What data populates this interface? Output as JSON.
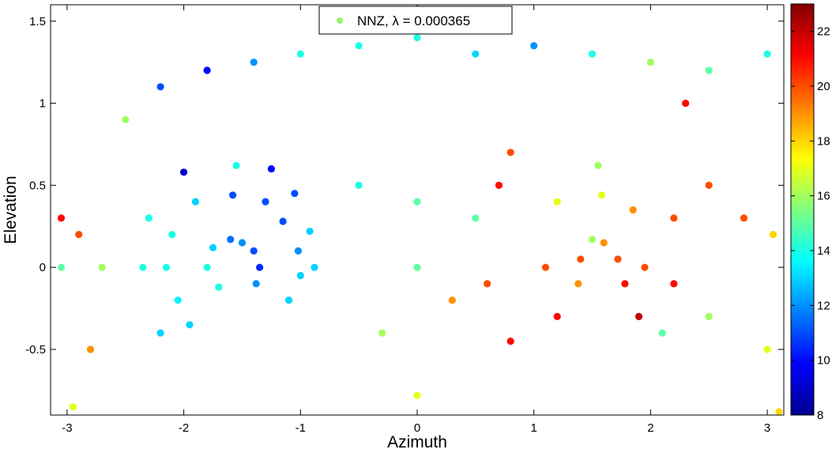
{
  "chart_data": {
    "type": "scatter",
    "title": "",
    "xlabel": "Azimuth",
    "ylabel": "Elevation",
    "xlim": [
      -3.14159,
      3.14159
    ],
    "ylim": [
      -0.9,
      1.6
    ],
    "xticks": [
      -3,
      -2,
      -1,
      0,
      1,
      2,
      3
    ],
    "xtick_labels": [
      "-3",
      "-2",
      "-1",
      "0",
      "1",
      "2",
      "3"
    ],
    "yticks": [
      -0.5,
      0,
      0.5,
      1,
      1.5
    ],
    "ytick_labels": [
      "-0.5",
      "0",
      "0.5",
      "1",
      "1.5"
    ],
    "grid": false,
    "legend": {
      "entries": [
        "NNZ, λ = 0.000365"
      ],
      "placement": "top-center",
      "marker_color": "#9AF06B"
    },
    "colorbar": {
      "colormap": "jet",
      "range": [
        8,
        23
      ],
      "ticks": [
        8,
        10,
        12,
        14,
        16,
        18,
        20,
        22
      ],
      "tick_labels": [
        "8",
        "10",
        "12",
        "14",
        "16",
        "18",
        "20",
        "22"
      ]
    },
    "series": [
      {
        "description_of_values": "approximate reading of NNZ per point",
        "points": [
          [
            -1.6,
            0.17,
            11.5
          ],
          [
            -1.5,
            0.15,
            12
          ],
          [
            -1.4,
            0.1,
            11
          ],
          [
            -1.35,
            0.0,
            10.5
          ],
          [
            -1.38,
            -0.1,
            12
          ],
          [
            -1.75,
            0.12,
            13
          ],
          [
            -1.8,
            0.0,
            14
          ],
          [
            -1.7,
            -0.12,
            14
          ],
          [
            -1.58,
            0.44,
            11
          ],
          [
            -1.3,
            0.4,
            11
          ],
          [
            -1.15,
            0.28,
            11
          ],
          [
            -1.02,
            0.1,
            12
          ],
          [
            -1.0,
            -0.05,
            13
          ],
          [
            -1.1,
            -0.2,
            13
          ],
          [
            -1.9,
            0.4,
            13
          ],
          [
            -2.1,
            0.2,
            14
          ],
          [
            -2.15,
            0.0,
            14
          ],
          [
            -2.05,
            -0.2,
            13.5
          ],
          [
            -1.95,
            -0.35,
            13
          ],
          [
            -1.55,
            0.62,
            14
          ],
          [
            -1.25,
            0.6,
            10
          ],
          [
            -1.05,
            0.45,
            11
          ],
          [
            -0.92,
            0.22,
            13
          ],
          [
            -0.88,
            0.0,
            13
          ],
          [
            -2.0,
            0.58,
            9
          ],
          [
            -2.3,
            0.3,
            14
          ],
          [
            -2.35,
            0.0,
            14
          ],
          [
            -2.2,
            -0.4,
            13
          ],
          [
            -2.7,
            0.0,
            16
          ],
          [
            -2.9,
            0.2,
            20
          ],
          [
            -3.05,
            0.3,
            21
          ],
          [
            -3.05,
            0.0,
            15
          ],
          [
            -2.8,
            -0.5,
            19
          ],
          [
            -2.5,
            0.9,
            16
          ],
          [
            -2.2,
            1.1,
            11
          ],
          [
            -1.8,
            1.2,
            10
          ],
          [
            -1.4,
            1.25,
            12
          ],
          [
            -1.0,
            1.3,
            14
          ],
          [
            -0.5,
            1.35,
            14
          ],
          [
            0.0,
            1.4,
            14
          ],
          [
            0.5,
            1.3,
            13
          ],
          [
            1.0,
            1.35,
            12
          ],
          [
            1.5,
            1.3,
            14
          ],
          [
            2.0,
            1.25,
            16
          ],
          [
            2.5,
            1.2,
            15
          ],
          [
            3.0,
            1.3,
            14
          ],
          [
            -0.5,
            0.5,
            14
          ],
          [
            0.0,
            0.4,
            15
          ],
          [
            0.5,
            0.3,
            15
          ],
          [
            0.0,
            0.0,
            15
          ],
          [
            0.3,
            -0.2,
            19
          ],
          [
            0.6,
            -0.1,
            20
          ],
          [
            -0.3,
            -0.4,
            16
          ],
          [
            0.0,
            -0.78,
            17
          ],
          [
            0.8,
            -0.45,
            21
          ],
          [
            1.5,
            0.17,
            16
          ],
          [
            1.6,
            0.15,
            19
          ],
          [
            1.72,
            0.05,
            20
          ],
          [
            1.78,
            -0.1,
            21
          ],
          [
            1.4,
            0.05,
            20
          ],
          [
            1.38,
            -0.1,
            19
          ],
          [
            1.58,
            0.44,
            17
          ],
          [
            1.85,
            0.35,
            19
          ],
          [
            1.95,
            0.0,
            20
          ],
          [
            1.9,
            -0.3,
            22
          ],
          [
            1.2,
            0.4,
            17
          ],
          [
            1.1,
            0.0,
            20
          ],
          [
            1.2,
            -0.3,
            21
          ],
          [
            1.55,
            0.62,
            16
          ],
          [
            2.2,
            0.3,
            20
          ],
          [
            2.2,
            -0.1,
            21
          ],
          [
            2.1,
            -0.4,
            15
          ],
          [
            0.8,
            0.7,
            20
          ],
          [
            0.7,
            0.5,
            21
          ],
          [
            2.5,
            0.5,
            20
          ],
          [
            2.8,
            0.3,
            20
          ],
          [
            3.05,
            0.2,
            18
          ],
          [
            2.5,
            -0.3,
            16
          ],
          [
            3.0,
            -0.5,
            17
          ],
          [
            2.3,
            1.0,
            21
          ],
          [
            -2.95,
            -0.85,
            17
          ],
          [
            3.1,
            -0.88,
            18
          ]
        ]
      }
    ]
  }
}
